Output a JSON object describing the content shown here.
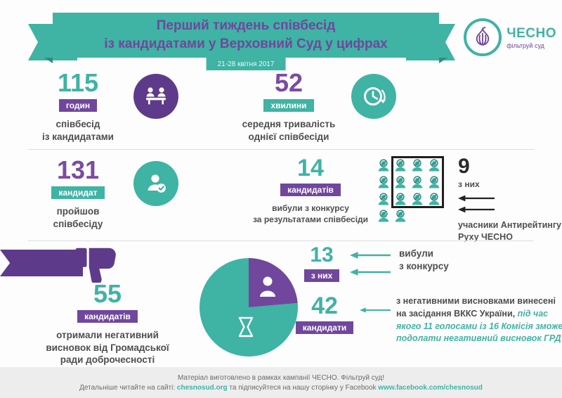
{
  "colors": {
    "teal": "#3FB3A4",
    "teal_dark": "#2E8C80",
    "purple": "#70479C",
    "purple_dark": "#5D3B8A",
    "text_dark": "#4D4E50"
  },
  "header": {
    "title_line1": "Перший тиждень співбесід",
    "title_line2": "із кандидатами у Верховний Суд у цифрах",
    "date": "21-28 квітня 2017"
  },
  "logo": {
    "brand": "ЧЕСНО",
    "tagline": "фільтруй суд",
    "icon": "garlic-icon"
  },
  "stats": {
    "hours": {
      "value": "115",
      "unit": "годин",
      "desc": "співбесід\nіз кандидатами",
      "icon": "interview-people-icon"
    },
    "duration": {
      "value": "52",
      "unit": "хвилини",
      "desc": "середня тривалість\nоднієї співбесіди",
      "icon": "clock-icon"
    },
    "passed": {
      "value": "131",
      "unit": "кандидат",
      "desc": "пройшов\nспівбесіду",
      "icon": "person-check-icon"
    },
    "dropped": {
      "value": "14",
      "unit": "кандидатів",
      "desc": "вибули з конкурсу\nза результатами співбесіди",
      "icon": "banned-person-icon",
      "icon_count": 14
    },
    "antirating": {
      "value": "9",
      "unit": "з них",
      "desc": "учасники Антирейтингу\nРуху ЧЕСНО"
    },
    "negative": {
      "value": "55",
      "unit": "кандидатів",
      "desc": "отримали негативний\nвисновок від Громадської\nради доброчесності",
      "icon": "thumbs-down-icon"
    },
    "out": {
      "value": "13",
      "unit": "з них",
      "desc": "вибули\nз конкурсу"
    },
    "vkks": {
      "value": "42",
      "unit": "кандидати",
      "desc_bold": "з негативними висновками винесені на засідання ВККС України,",
      "desc_italic": "під час якого 11 голосами із 16 Комісія зможе подолати негативний висновок ГРД"
    }
  },
  "chart_data": [
    {
      "type": "pie",
      "total": 55,
      "slices": [
        {
          "label": "з них вибули з конкурсу",
          "value": 13,
          "color": "#70479C",
          "icon": "person-icon"
        },
        {
          "label": "з негативними висновками винесені на засідання ВККС України",
          "value": 42,
          "color": "#3FB3A4",
          "icon": "hourglass-icon"
        }
      ],
      "legend_position": "right"
    },
    {
      "type": "table",
      "title": "Перший тиждень співбесід із кандидатами у Верховний Суд у цифрах (21-28 квітня 2017)",
      "rows": [
        [
          "115",
          "годин співбесід із кандидатами"
        ],
        [
          "52",
          "хвилини середня тривалість однієї співбесіди"
        ],
        [
          "131",
          "кандидат пройшов співбесіду"
        ],
        [
          "14",
          "кандидатів вибули з конкурсу за результатами співбесіди"
        ],
        [
          "9",
          "з них учасники Антирейтингу Руху ЧЕСНО"
        ],
        [
          "55",
          "кандидатів отримали негативний висновок від Громадської ради доброчесності"
        ],
        [
          "13",
          "з них вибули з конкурсу"
        ],
        [
          "42",
          "кандидати з негативними висновками винесені на засідання ВККС України"
        ]
      ]
    }
  ],
  "footer": {
    "line1": "Матеріал виготовлено в рамках кампанії ЧЕСНО. Фільтруй суд!",
    "line2_prefix": "Детальніше читайте на сайті: ",
    "link_site": "chesnosud.org",
    "line2_middle": " та підписуйтеся на нашу сторінку у Facebook ",
    "link_facebook": "www.facebook.com/chesnosud"
  }
}
